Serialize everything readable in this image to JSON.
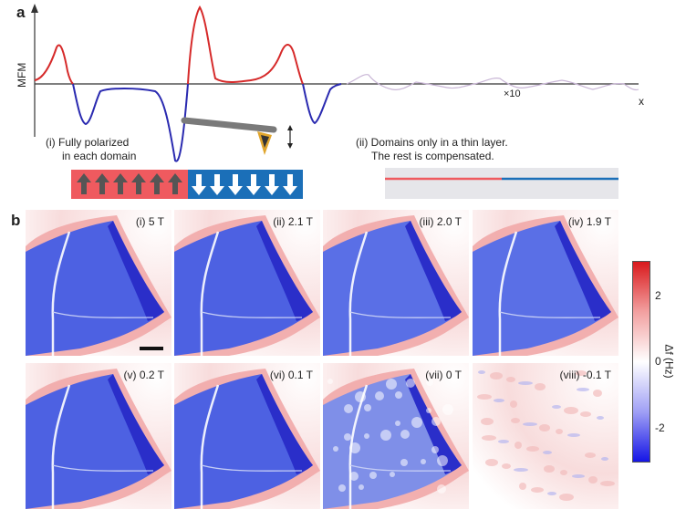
{
  "panel_a": {
    "letter": "a",
    "y_axis_label": "MFM",
    "x_axis_label": "x",
    "zoom_label": "×10",
    "left_caption_line1": "(i) Fully polarized",
    "left_caption_line2": "in each domain",
    "right_caption_line1": "(ii) Domains only in a thin layer.",
    "right_caption_line2": "The rest is compensated.",
    "colors": {
      "positive": "#d62a2a",
      "negative": "#2a2ab0",
      "red_domain": "#ef5a5f",
      "blue_domain": "#1b6fb8"
    }
  },
  "panel_b": {
    "letter": "b",
    "tiles": [
      {
        "label": "(i) 5 T"
      },
      {
        "label": "(ii) 2.1 T"
      },
      {
        "label": "(iii) 2.0 T"
      },
      {
        "label": "(iv) 1.9 T"
      },
      {
        "label": "(v) 0.2 T"
      },
      {
        "label": "(vi) 0.1 T"
      },
      {
        "label": "(vii) 0 T"
      },
      {
        "label": "(viii) -0.1 T"
      }
    ],
    "colorbar": {
      "ticks": [
        "2",
        "0",
        "-2"
      ],
      "unit": "Δf (Hz)",
      "colors": {
        "high": "#d9191c",
        "mid": "#ffffff",
        "low": "#1515e6"
      }
    }
  }
}
